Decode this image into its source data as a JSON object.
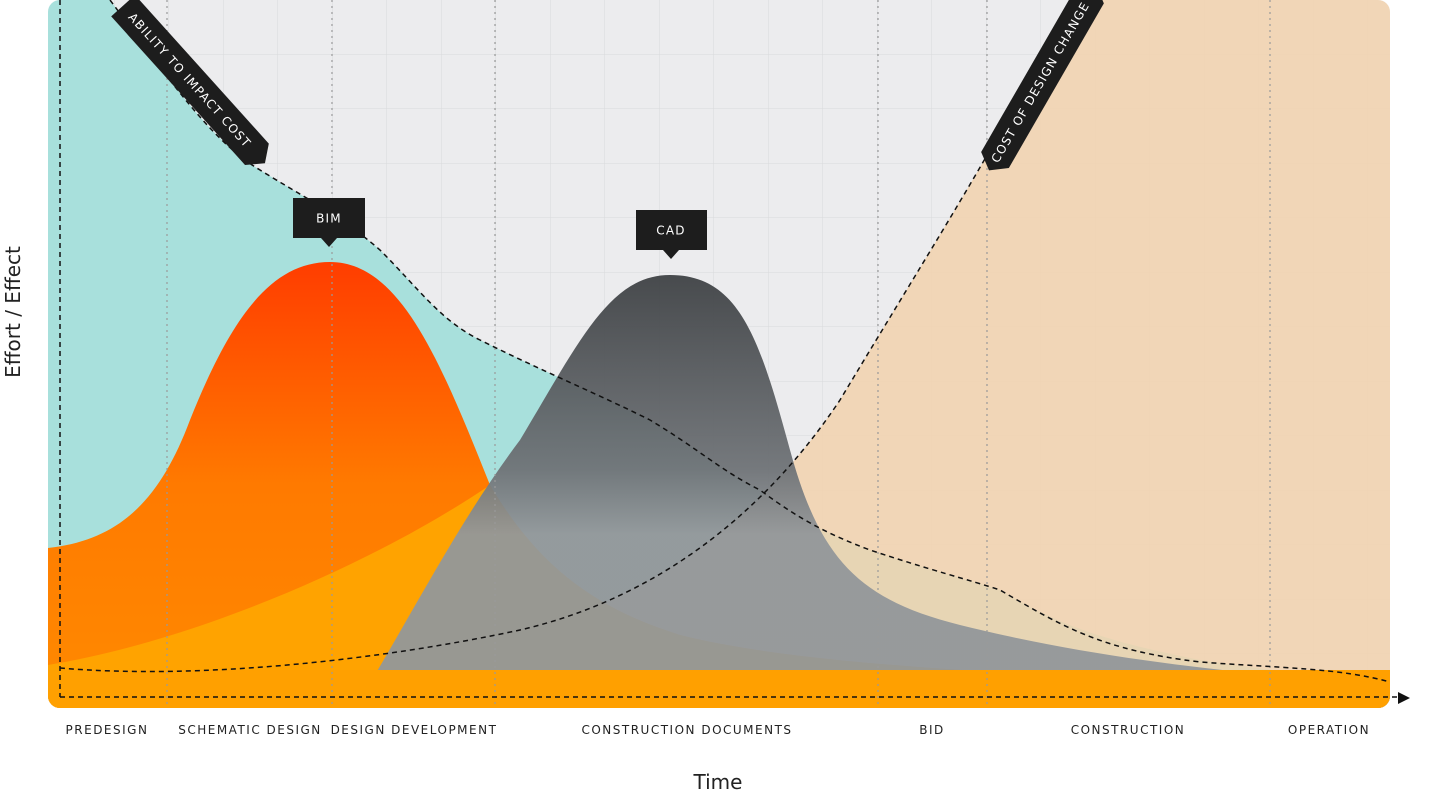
{
  "axis_labels": {
    "y": "Effort / Effect",
    "x": "Time"
  },
  "curve_labels": {
    "ability": "ABILITY TO IMPACT COST",
    "cost": "COST OF DESIGN CHANGE",
    "bim": "BIM",
    "cad": "CAD"
  },
  "phases": [
    "PREDESIGN",
    "SCHEMATIC DESIGN",
    "DESIGN DEVELOPMENT",
    "CONSTRUCTION DOCUMENTS",
    "BID",
    "CONSTRUCTION",
    "OPERATION"
  ]
}
